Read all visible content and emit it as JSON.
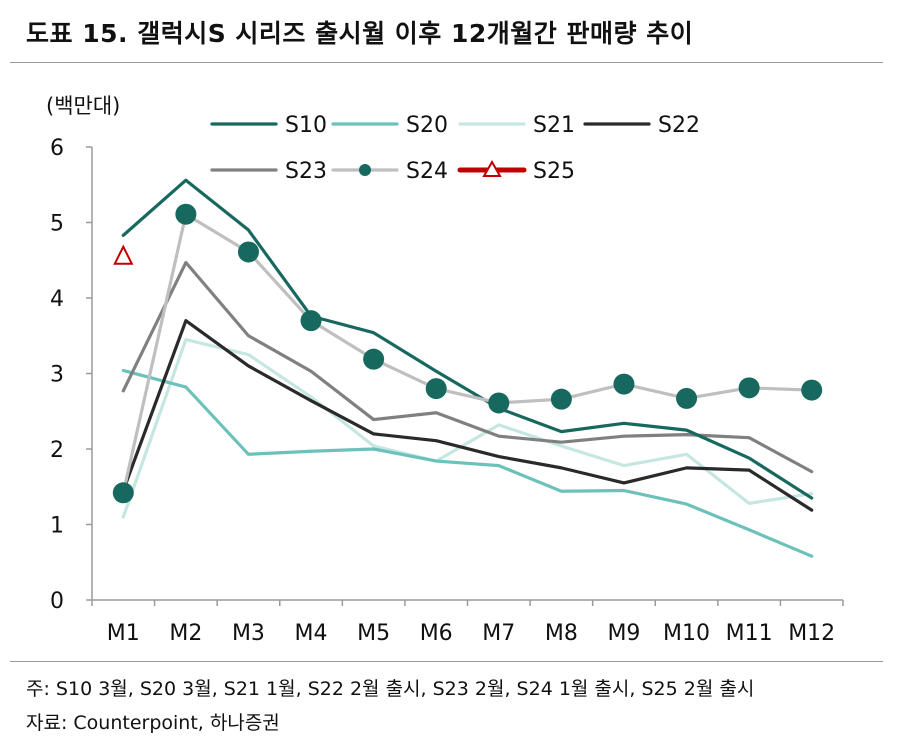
{
  "header": {
    "title": "도표 15. 갤럭시S 시리즈 출시월 이후 12개월간 판매량 추이"
  },
  "footer": {
    "note": "주: S10 3월, S20 3월, S21 1월, S22 2월 출시, S23 2월, S24 1월 출시, S25 2월 출시",
    "source": "자료: Counterpoint, 하나증권"
  },
  "chart_data": {
    "type": "line",
    "unit_label": "(백만대)",
    "categories": [
      "M1",
      "M2",
      "M3",
      "M4",
      "M5",
      "M6",
      "M7",
      "M8",
      "M9",
      "M10",
      "M11",
      "M12"
    ],
    "ylim": [
      0,
      6
    ],
    "yticks": [
      "0",
      "1",
      "2",
      "3",
      "4",
      "5",
      "6"
    ],
    "legend_position": "top",
    "grid": false,
    "series": [
      {
        "name": "S10",
        "color": "#17695F",
        "marker": "none",
        "values": [
          4.83,
          5.56,
          4.9,
          3.76,
          3.54,
          3.03,
          2.54,
          2.23,
          2.34,
          2.25,
          1.88,
          1.35
        ]
      },
      {
        "name": "S20",
        "color": "#6CC2BA",
        "marker": "none",
        "values": [
          3.04,
          2.82,
          1.93,
          1.97,
          2.0,
          1.84,
          1.78,
          1.44,
          1.45,
          1.27,
          0.93,
          0.58
        ]
      },
      {
        "name": "S21",
        "color": "#C6E6E1",
        "marker": "none",
        "values": [
          1.1,
          3.45,
          3.25,
          2.69,
          2.04,
          1.84,
          2.32,
          2.04,
          1.78,
          1.93,
          1.28,
          1.41
        ]
      },
      {
        "name": "S22",
        "color": "#2A2A2A",
        "marker": "none",
        "values": [
          1.45,
          3.7,
          3.1,
          2.64,
          2.2,
          2.11,
          1.9,
          1.75,
          1.55,
          1.75,
          1.72,
          1.19
        ]
      },
      {
        "name": "S23",
        "color": "#808080",
        "marker": "none",
        "values": [
          2.77,
          4.47,
          3.5,
          3.03,
          2.39,
          2.48,
          2.17,
          2.09,
          2.17,
          2.19,
          2.15,
          1.7
        ]
      },
      {
        "name": "S24",
        "color": "#BFBFBF",
        "marker": "circle",
        "marker_color": "#17695F",
        "values": [
          1.42,
          5.11,
          4.61,
          3.7,
          3.19,
          2.8,
          2.61,
          2.66,
          2.86,
          2.67,
          2.81,
          2.78
        ]
      },
      {
        "name": "S25",
        "color": "#C00000",
        "marker": "triangle",
        "values": [
          4.56,
          null,
          null,
          null,
          null,
          null,
          null,
          null,
          null,
          null,
          null,
          null
        ]
      }
    ]
  }
}
